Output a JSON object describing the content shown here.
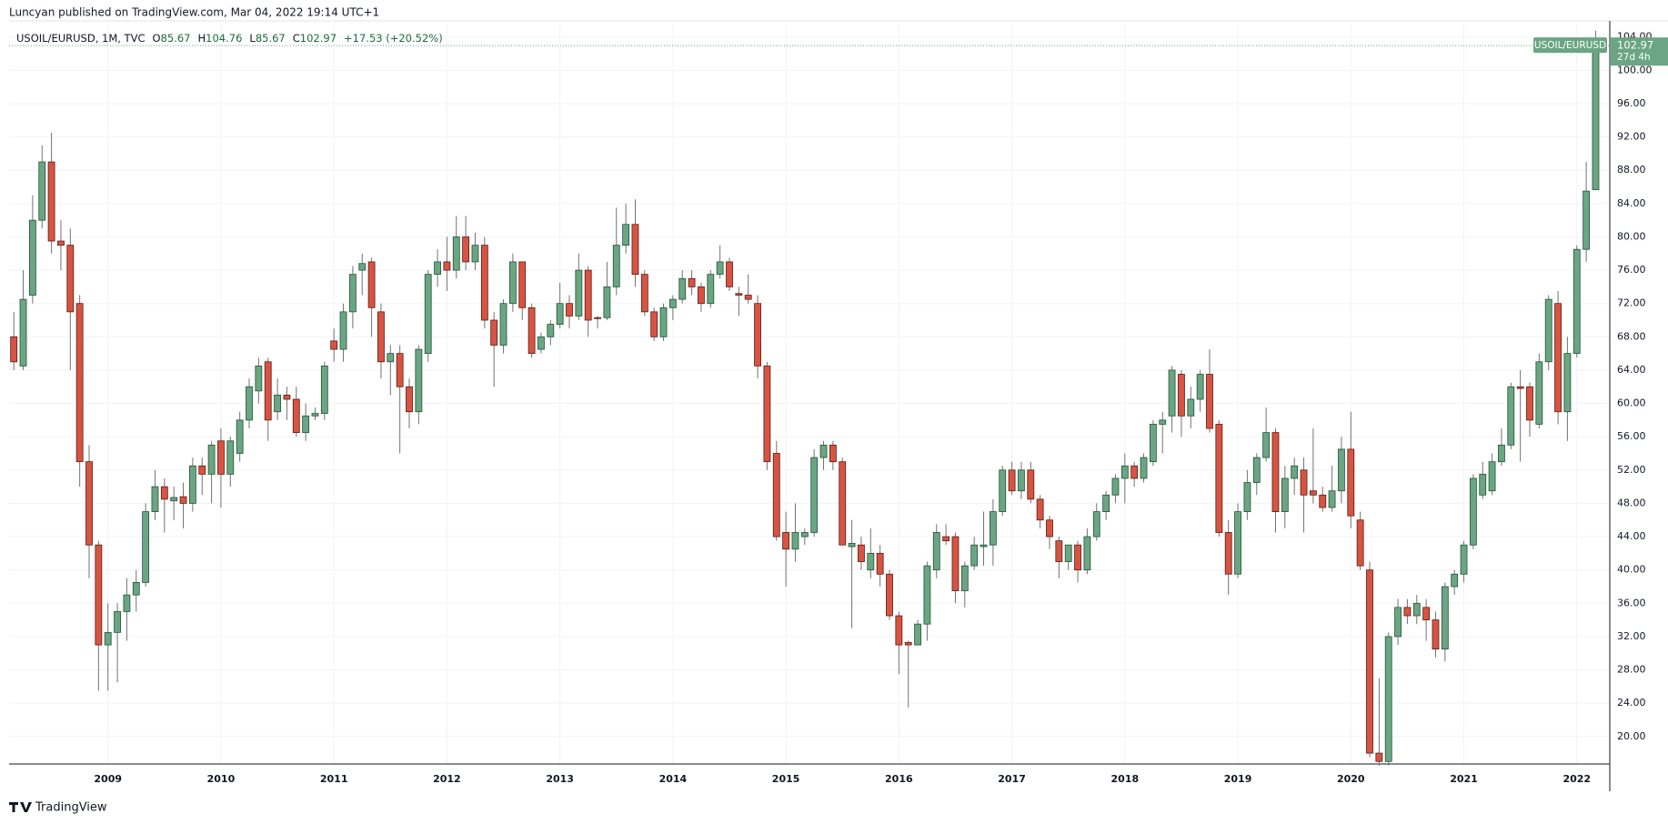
{
  "chart_data": {
    "type": "candlestick",
    "title": "Luncyan published on TradingView.com, Mar 04, 2022 19:14 UTC+1",
    "legend": {
      "symbol": "USOIL/EURUSD, 1M, TVC",
      "items": [
        {
          "key": "O",
          "value": "85.67"
        },
        {
          "key": "H",
          "value": "104.76"
        },
        {
          "key": "L",
          "value": "85.67"
        },
        {
          "key": "C",
          "value": "102.97"
        }
      ],
      "change": "+17.53 (+20.52%)"
    },
    "last_price": {
      "symbol": "USOIL/EURUSD",
      "price": "102.97",
      "countdown": "27d 4h"
    },
    "branding": "TradingView",
    "colors": {
      "up": "#6ba583",
      "up_border": "#225437",
      "down": "#d75442",
      "down_border": "#5b1a13",
      "wick": "#737375"
    },
    "grid": true,
    "categories": [
      null,
      null,
      null,
      null,
      null,
      null,
      null,
      null,
      null,
      null,
      "2009",
      null,
      null,
      null,
      null,
      null,
      null,
      null,
      null,
      null,
      null,
      null,
      "2010",
      null,
      null,
      null,
      null,
      null,
      null,
      null,
      null,
      null,
      null,
      null,
      "2011",
      null,
      null,
      null,
      null,
      null,
      null,
      null,
      null,
      null,
      null,
      null,
      "2012",
      null,
      null,
      null,
      null,
      null,
      null,
      null,
      null,
      null,
      null,
      null,
      "2013",
      null,
      null,
      null,
      null,
      null,
      null,
      null,
      null,
      null,
      null,
      null,
      "2014",
      null,
      null,
      null,
      null,
      null,
      null,
      null,
      null,
      null,
      null,
      null,
      "2015",
      null,
      null,
      null,
      null,
      null,
      null,
      null,
      null,
      null,
      null,
      null,
      "2016",
      null,
      null,
      null,
      null,
      null,
      null,
      null,
      null,
      null,
      null,
      null,
      "2017",
      null,
      null,
      null,
      null,
      null,
      null,
      null,
      null,
      null,
      null,
      null,
      "2018",
      null,
      null,
      null,
      null,
      null,
      null,
      null,
      null,
      null,
      null,
      null,
      "2019",
      null,
      null,
      null,
      null,
      null,
      null,
      null,
      null,
      null,
      null,
      null,
      "2020",
      null,
      null,
      null,
      null,
      null,
      null,
      null,
      null,
      null,
      null,
      null,
      "2021",
      null,
      null,
      null,
      null,
      null,
      null,
      null,
      null,
      null,
      null,
      null,
      "2022",
      null,
      null
    ],
    "open": [
      68,
      64.5,
      73,
      82,
      89,
      79.5,
      79,
      72,
      53,
      43,
      31,
      32.5,
      35,
      37,
      38.5,
      47,
      50,
      48.3,
      48.8,
      48,
      52.5,
      51.5,
      55.5,
      51.5,
      54,
      58,
      61.5,
      65,
      59,
      61,
      60.5,
      56.5,
      58.5,
      58.8,
      67.5,
      66.5,
      71,
      76,
      77,
      71,
      65,
      66,
      62,
      59,
      66,
      75.5,
      77,
      76,
      80,
      77,
      79,
      70,
      67,
      72,
      77,
      71.5,
      66.5,
      68,
      69.5,
      72,
      70.5,
      76,
      70.3,
      70.3,
      74,
      79,
      81.5,
      75.5,
      71,
      68,
      71.5,
      72.5,
      75,
      74,
      72,
      75.5,
      77,
      73.2,
      73,
      72,
      64.5,
      54,
      44.5,
      42.5,
      44,
      44.5,
      53.5,
      55,
      53,
      42.8,
      43,
      40,
      42,
      39.5,
      34.5,
      31.3,
      31,
      33.5,
      40,
      44,
      44,
      37.5,
      40.5,
      42.8,
      43,
      47,
      52,
      49.5,
      52,
      48.5,
      46,
      43.5,
      41,
      43,
      40,
      44,
      47,
      49,
      51,
      52.5,
      51,
      53,
      57.5,
      58.5,
      63.5,
      58.5,
      60.5,
      63.5,
      57.5,
      44.5,
      39.5,
      47,
      50.5,
      53.5,
      56.5,
      47,
      51,
      52,
      49.5,
      49,
      47.5,
      49.5,
      54.5,
      46,
      40,
      18,
      17,
      32,
      35.5,
      34.5,
      35.5,
      34,
      30.5,
      38,
      39.5,
      43,
      49,
      49.5,
      53,
      55,
      62,
      62,
      57.5,
      65,
      72,
      59,
      66,
      78.5,
      85.67
    ],
    "high": [
      71,
      76,
      85,
      91,
      92.5,
      82,
      81,
      73,
      55,
      43.5,
      36,
      36,
      39,
      40,
      48,
      52,
      51,
      50,
      50.5,
      53.5,
      53.5,
      55.5,
      57,
      56,
      59,
      63,
      65.5,
      65.5,
      63,
      62,
      62,
      60,
      59.5,
      65,
      69,
      72,
      76.5,
      78,
      77.5,
      72,
      67,
      67,
      63,
      67,
      76,
      78.5,
      80,
      82.5,
      82.5,
      80.5,
      80,
      71,
      72.5,
      78,
      77,
      72,
      68.5,
      70,
      74.5,
      73,
      78,
      76.5,
      70.5,
      77,
      83.5,
      84,
      84.5,
      76,
      71.5,
      72,
      73,
      76,
      76,
      74.5,
      76,
      79,
      77.5,
      74,
      75.5,
      73,
      65,
      55.5,
      47,
      48,
      45,
      54.5,
      55.5,
      55.5,
      53.5,
      46,
      44,
      45,
      43,
      40,
      35,
      31.5,
      34,
      41,
      45.5,
      45.5,
      44.5,
      41,
      44,
      47,
      48.5,
      52.5,
      53,
      53,
      53,
      49,
      46.5,
      44,
      43,
      43.5,
      45,
      48,
      49.5,
      51.5,
      54,
      53,
      54,
      58,
      59,
      64.5,
      64,
      62,
      64,
      66.5,
      58,
      46,
      48,
      52,
      54,
      59.5,
      57,
      52.5,
      53.5,
      53.5,
      57,
      50,
      52.5,
      56,
      59,
      47,
      41,
      27,
      32.5,
      36.5,
      36.5,
      37,
      36.5,
      35,
      38.5,
      40,
      43.5,
      51.5,
      53,
      54,
      57,
      62.5,
      64,
      62.5,
      66,
      73,
      73.5,
      68,
      79,
      89,
      104.76
    ],
    "low": [
      64,
      64,
      72,
      81,
      78,
      76,
      64,
      50,
      39,
      25.5,
      25.5,
      26.5,
      31.5,
      35,
      38,
      46,
      44.5,
      46,
      45,
      47,
      49,
      48,
      47.5,
      50,
      53,
      57,
      60,
      55.5,
      58,
      58,
      56,
      55.5,
      58,
      58,
      65,
      65,
      69,
      73,
      68,
      63,
      61,
      54,
      57,
      57.5,
      65,
      74,
      73.5,
      75,
      76,
      76,
      69,
      62,
      66,
      71,
      70,
      65.5,
      66,
      67,
      69,
      69,
      70,
      68,
      69,
      70,
      73,
      78,
      74,
      70.5,
      67.5,
      67.5,
      70,
      72,
      73,
      71,
      71.5,
      75,
      73.5,
      70.5,
      72,
      63,
      52,
      43.5,
      38,
      41,
      43,
      44,
      52,
      52,
      43,
      33,
      40,
      39,
      38,
      34,
      27.5,
      23.5,
      31,
      31.5,
      39,
      43,
      36,
      35.5,
      40,
      40.5,
      40.5,
      46.5,
      49,
      48.5,
      48,
      45,
      42.5,
      39,
      40,
      38.5,
      39.5,
      43.5,
      46,
      48,
      48,
      50,
      50.5,
      52.5,
      54,
      56.5,
      56,
      57,
      59,
      56.5,
      44,
      37,
      39,
      46,
      49,
      53,
      44.5,
      45,
      49,
      44.5,
      48,
      47,
      47,
      48,
      45,
      40,
      17.5,
      16.5,
      16.5,
      31,
      33.5,
      33.5,
      31.5,
      29.5,
      29,
      37,
      38.5,
      42.5,
      48.5,
      49,
      52.5,
      54.5,
      53,
      56,
      57,
      64,
      57.5,
      55.5,
      65.5,
      77,
      85.67
    ],
    "close": [
      65,
      72.5,
      82,
      89,
      79.5,
      79,
      71,
      53,
      43,
      31,
      32.5,
      35,
      37,
      38.5,
      47,
      50,
      48.5,
      48.7,
      48,
      52.5,
      51.5,
      55,
      51.5,
      55.5,
      58,
      62,
      64.5,
      58,
      61,
      60.5,
      56.5,
      58.5,
      58.8,
      64.5,
      66.5,
      71,
      75.5,
      76.8,
      71.5,
      65,
      66,
      62,
      59,
      66.5,
      75.5,
      77,
      76,
      80,
      77,
      79,
      70,
      67,
      72,
      77,
      71.5,
      66,
      68,
      69.5,
      72,
      70.5,
      76,
      70,
      70.2,
      74,
      79,
      81.5,
      75.5,
      71,
      68,
      71.5,
      72.5,
      75,
      74,
      72,
      75.5,
      77,
      74,
      73,
      72.5,
      64.5,
      53,
      44,
      42.5,
      44.5,
      44.5,
      53.5,
      55,
      53,
      43,
      43.2,
      41,
      42,
      39.5,
      34.5,
      31,
      31,
      33.5,
      40.5,
      44.5,
      43.5,
      37.5,
      40.5,
      43,
      43,
      47,
      52,
      49.5,
      52,
      48.5,
      46,
      44,
      41,
      43,
      40,
      44,
      47,
      49,
      51,
      52.5,
      51,
      53.5,
      57.5,
      58,
      64,
      58.5,
      60.5,
      63.5,
      57,
      44.5,
      39.5,
      47,
      50.5,
      53.5,
      56.5,
      47,
      51,
      52.5,
      49,
      49,
      47.5,
      49.5,
      54.5,
      46.5,
      40.5,
      18,
      17,
      32,
      35.5,
      34.5,
      36,
      34,
      30.5,
      38,
      39.5,
      43,
      51,
      51.5,
      53,
      55,
      62,
      61.8,
      58,
      65,
      72.5,
      59,
      66,
      78.5,
      85.5,
      102.97
    ],
    "ylim": [
      16.7,
      105.5
    ],
    "yticks": [
      {
        "value": 20,
        "label": "20.00"
      },
      {
        "value": 24,
        "label": "24.00"
      },
      {
        "value": 28,
        "label": "28.00"
      },
      {
        "value": 32,
        "label": "32.00"
      },
      {
        "value": 36,
        "label": "36.00"
      },
      {
        "value": 40,
        "label": "40.00"
      },
      {
        "value": 44,
        "label": "44.00"
      },
      {
        "value": 48,
        "label": "48.00"
      },
      {
        "value": 52,
        "label": "52.00"
      },
      {
        "value": 56,
        "label": "56.00"
      },
      {
        "value": 60,
        "label": "60.00"
      },
      {
        "value": 64,
        "label": "64.00"
      },
      {
        "value": 68,
        "label": "68.00"
      },
      {
        "value": 72,
        "label": "72.00"
      },
      {
        "value": 76,
        "label": "76.00"
      },
      {
        "value": 80,
        "label": "80.00"
      },
      {
        "value": 84,
        "label": "84.00"
      },
      {
        "value": 88,
        "label": "88.00"
      },
      {
        "value": 92,
        "label": "92.00"
      },
      {
        "value": 96,
        "label": "96.00"
      },
      {
        "value": 100,
        "label": "100.00"
      },
      {
        "value": 104,
        "label": "104.00"
      }
    ]
  }
}
